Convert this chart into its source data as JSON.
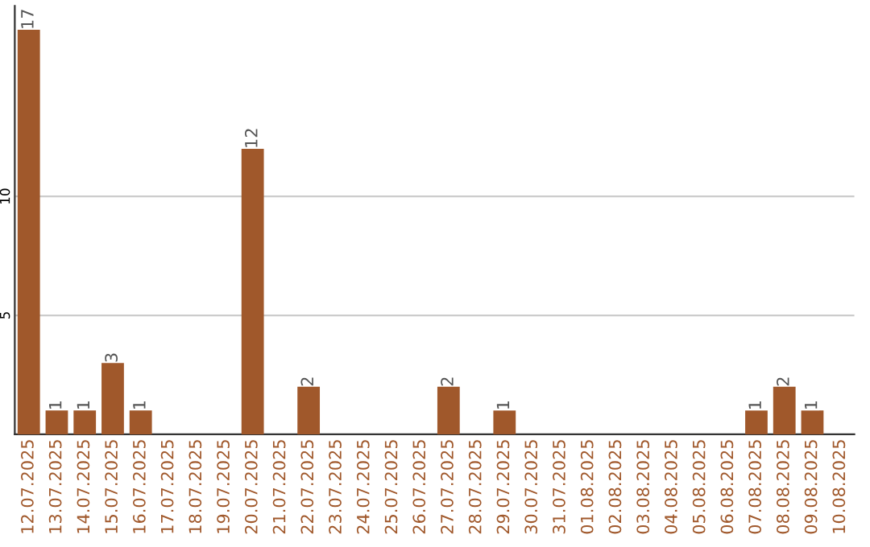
{
  "chart_data": {
    "type": "bar",
    "categories": [
      "12.07.2025",
      "13.07.2025",
      "14.07.2025",
      "15.07.2025",
      "16.07.2025",
      "17.07.2025",
      "18.07.2025",
      "19.07.2025",
      "20.07.2025",
      "21.07.2025",
      "22.07.2025",
      "23.07.2025",
      "24.07.2025",
      "25.07.2025",
      "26.07.2025",
      "27.07.2025",
      "28.07.2025",
      "29.07.2025",
      "30.07.2025",
      "31.07.2025",
      "01.08.2025",
      "02.08.2025",
      "03.08.2025",
      "04.08.2025",
      "05.08.2025",
      "06.08.2025",
      "07.08.2025",
      "08.08.2025",
      "09.08.2025",
      "10.08.2025"
    ],
    "values": [
      17,
      1,
      1,
      3,
      1,
      0,
      0,
      0,
      12,
      0,
      2,
      0,
      0,
      0,
      0,
      2,
      0,
      1,
      0,
      0,
      0,
      0,
      0,
      0,
      0,
      0,
      1,
      2,
      1,
      0
    ],
    "value_labels": [
      "17",
      "1",
      "1",
      "3",
      "1",
      null,
      null,
      null,
      "12",
      null,
      "2",
      null,
      null,
      null,
      null,
      "2",
      null,
      "1",
      null,
      null,
      null,
      null,
      null,
      null,
      null,
      null,
      "1",
      "2",
      "1",
      null
    ],
    "color": "#a0582b",
    "ylim": [
      0,
      18
    ],
    "yticks": [
      5,
      10
    ],
    "grid": "y"
  }
}
